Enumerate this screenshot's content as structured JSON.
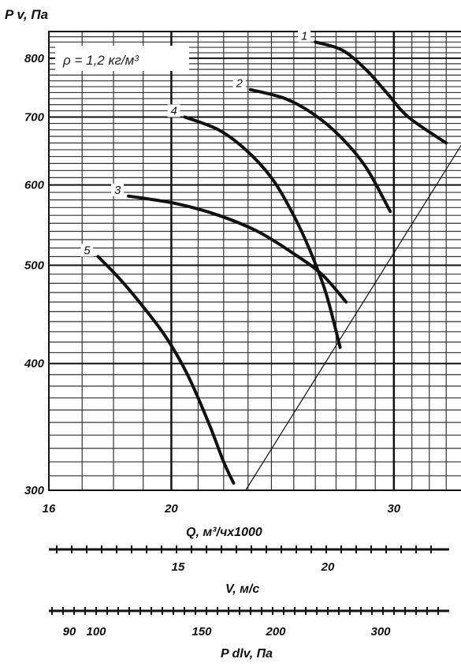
{
  "chart_data": {
    "type": "line",
    "y_label": "P v, Па",
    "x_label": "Q, м³/чх1000",
    "density_note": "ρ = 1,2 кг/м³",
    "y_scale": "log",
    "x_scale": "log",
    "ylim": [
      300,
      850
    ],
    "xlim": [
      16,
      34
    ],
    "y_ticks": [
      {
        "value": 300,
        "label": "300"
      },
      {
        "value": 400,
        "label": "400"
      },
      {
        "value": 500,
        "label": "500"
      },
      {
        "value": 600,
        "label": "600"
      },
      {
        "value": 700,
        "label": "700"
      },
      {
        "value": 800,
        "label": "800"
      }
    ],
    "x_ticks": [
      {
        "value": 16,
        "label": "16"
      },
      {
        "value": 20,
        "label": "20"
      },
      {
        "value": 30,
        "label": "30"
      }
    ],
    "grid": true,
    "series": [
      {
        "name": "1",
        "points": [
          [
            26.0,
            830
          ],
          [
            27.3,
            815
          ],
          [
            28.5,
            780
          ],
          [
            29.6,
            740
          ],
          [
            30.8,
            700
          ],
          [
            33.0,
            660
          ]
        ]
      },
      {
        "name": "2",
        "points": [
          [
            23.1,
            745
          ],
          [
            24.6,
            730
          ],
          [
            25.9,
            705
          ],
          [
            27.2,
            670
          ],
          [
            28.5,
            625
          ],
          [
            29.8,
            565
          ]
        ]
      },
      {
        "name": "4",
        "points": [
          [
            20.5,
            700
          ],
          [
            21.8,
            680
          ],
          [
            22.9,
            650
          ],
          [
            24.0,
            610
          ],
          [
            24.9,
            565
          ],
          [
            25.7,
            520
          ],
          [
            26.5,
            470
          ],
          [
            27.2,
            415
          ]
        ]
      },
      {
        "name": "3",
        "points": [
          [
            18.5,
            585
          ],
          [
            20.2,
            575
          ],
          [
            21.8,
            560
          ],
          [
            23.4,
            540
          ],
          [
            24.9,
            515
          ],
          [
            26.3,
            490
          ],
          [
            27.5,
            460
          ]
        ]
      },
      {
        "name": "5",
        "points": [
          [
            17.5,
            510
          ],
          [
            18.2,
            485
          ],
          [
            19.0,
            455
          ],
          [
            19.8,
            425
          ],
          [
            20.6,
            390
          ],
          [
            21.4,
            350
          ],
          [
            22.0,
            320
          ],
          [
            22.4,
            305
          ]
        ]
      }
    ],
    "system_line": {
      "points": [
        [
          22.9,
          300
        ],
        [
          34.0,
          660
        ]
      ]
    },
    "secondary_axes": [
      {
        "label": "V, м/с",
        "ticks": [
          {
            "label": "15",
            "value": 15
          },
          {
            "label": "20",
            "value": 20
          }
        ]
      },
      {
        "label": "P dlv, Па",
        "ticks": [
          {
            "label": "90",
            "value": 90
          },
          {
            "label": "100",
            "value": 100
          },
          {
            "label": "150",
            "value": 150
          },
          {
            "label": "200",
            "value": 200
          },
          {
            "label": "300",
            "value": 300
          }
        ]
      }
    ]
  }
}
